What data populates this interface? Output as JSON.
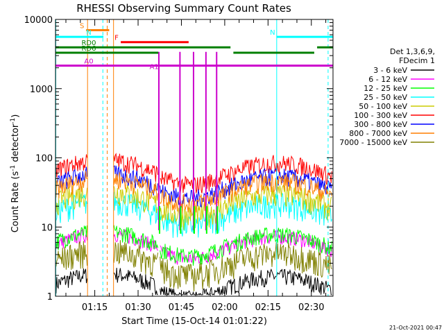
{
  "chart_data": {
    "type": "line",
    "title": "RHESSI Observing Summary Count Rates",
    "xlabel": "Start Time (15-Oct-14 01:01:22)",
    "ylabel_main": "Count Rate (s",
    "ylabel_sup1": "-1",
    "ylabel_mid": " detector",
    "ylabel_sup2": "-1",
    "ylabel_end": ")",
    "yscale": "log",
    "ylim": [
      1,
      10000
    ],
    "xlim_minutes": [
      61.4,
      157.5
    ],
    "y_ticks": [
      {
        "v": 1,
        "label": "1"
      },
      {
        "v": 10,
        "label": "10"
      },
      {
        "v": 100,
        "label": "100"
      },
      {
        "v": 1000,
        "label": "1000"
      },
      {
        "v": 10000,
        "label": "10000"
      }
    ],
    "x_ticks": [
      {
        "m": 75,
        "label": "01:15"
      },
      {
        "m": 90,
        "label": "01:30"
      },
      {
        "m": 105,
        "label": "01:45"
      },
      {
        "m": 120,
        "label": "02:00"
      },
      {
        "m": 135,
        "label": "02:15"
      },
      {
        "m": 150,
        "label": "02:30"
      }
    ],
    "legend_header": [
      "Det 1,3,6,9,",
      "FDecim 1"
    ],
    "series": [
      {
        "name": "3 - 6 keV",
        "color": "#000000",
        "base": 1.6,
        "amp": 0.35
      },
      {
        "name": "6 - 12 keV",
        "color": "#ff00ff",
        "base": 6.0,
        "amp": 0.3
      },
      {
        "name": "12 - 25 keV",
        "color": "#00ff00",
        "base": 6.5,
        "amp": 0.35
      },
      {
        "name": "25 - 50 keV",
        "color": "#00ffff",
        "base": 18,
        "amp": 0.5
      },
      {
        "name": "50 - 100 keV",
        "color": "#cccc00",
        "base": 25,
        "amp": 0.5
      },
      {
        "name": "100 - 300 keV",
        "color": "#ff0000",
        "base": 70,
        "amp": 0.38
      },
      {
        "name": "300 - 800 keV",
        "color": "#0000ff",
        "base": 45,
        "amp": 0.38
      },
      {
        "name": "800 - 7000 keV",
        "color": "#ff7f00",
        "base": 38,
        "amp": 0.4
      },
      {
        "name": "7000 - 15000 keV",
        "color": "#808000",
        "base": 3.5,
        "amp": 0.55
      }
    ],
    "state_bars": [
      {
        "label": "S",
        "color": "#ff7f00",
        "m0": 72,
        "m1": 80,
        "y": 7000
      },
      {
        "label": "N",
        "color": "#00ffff",
        "m0": 61.4,
        "m1": 78,
        "y": 5600
      },
      {
        "label": "N",
        "color": "#00ffff",
        "m0": 138,
        "m1": 157.5,
        "y": 5600
      },
      {
        "label": "F",
        "color": "#ff0000",
        "m0": 84,
        "m1": 107.5,
        "y": 4700
      },
      {
        "label": "RD0",
        "color": "#007f00",
        "m0": 61.4,
        "m1": 122,
        "y": 3950
      },
      {
        "label": "",
        "color": "#007f00",
        "m0": 123,
        "m1": 151,
        "y": 3300
      },
      {
        "label": "",
        "color": "#007f00",
        "m0": 152,
        "m1": 157.5,
        "y": 3950
      },
      {
        "label": "RD6",
        "color": "#007f00",
        "m0": 61.4,
        "m1": 97,
        "y": 3300
      },
      {
        "label": "A0",
        "color": "#cc00cc",
        "m0": 61.4,
        "m1": 157.5,
        "y": 2150
      },
      {
        "label": "A1",
        "color": "#cc00cc",
        "m0": 97,
        "m1": 97,
        "y": 2150
      }
    ],
    "saa_lines": [
      {
        "m": 61.5,
        "color": "#00ffff",
        "dashed": false
      },
      {
        "m": 72.5,
        "color": "#ff7f00",
        "dashed": false
      },
      {
        "m": 77.8,
        "color": "#00ffff",
        "dashed": true
      },
      {
        "m": 79.3,
        "color": "#ff7f00",
        "dashed": true
      },
      {
        "m": 81.5,
        "color": "#ff7f00",
        "dashed": false
      },
      {
        "m": 138,
        "color": "#00ffff",
        "dashed": false
      },
      {
        "m": 155.8,
        "color": "#00ffff",
        "dashed": true
      }
    ],
    "attenuator_spikes_minutes": [
      97.2,
      104.5,
      109.2,
      113.5,
      117.2
    ],
    "timestamp": "21-Oct-2021 00:47"
  }
}
